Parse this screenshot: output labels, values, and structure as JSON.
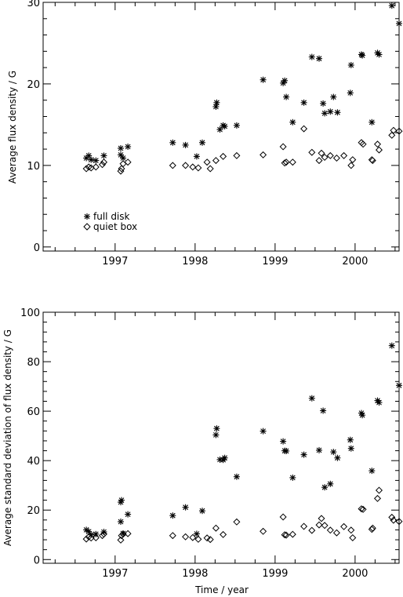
{
  "chart_data": [
    {
      "type": "scatter",
      "title": "",
      "xlabel": "",
      "ylabel": "Average flux density / G",
      "xlim": [
        1996.1,
        2000.55
      ],
      "ylim": [
        -0.5,
        30
      ],
      "xticks": [
        1997,
        1998,
        1999,
        2000
      ],
      "xtick_labels": [
        "1997",
        "1998",
        "1999",
        "2000"
      ],
      "yticks": [
        0,
        10,
        20,
        30
      ],
      "ytick_labels": [
        "0",
        "10",
        "20",
        "30"
      ],
      "legend": {
        "placement": "lower-left",
        "entries": [
          {
            "label": "full disk",
            "marker": "asterisk"
          },
          {
            "label": "quiet box",
            "marker": "diamond"
          }
        ]
      },
      "series": [
        {
          "name": "full disk",
          "marker": "asterisk",
          "x": [
            1996.64,
            1996.67,
            1996.7,
            1996.76,
            1996.86,
            1997.07,
            1997.07,
            1997.1,
            1997.16,
            1997.72,
            1997.88,
            1998.02,
            1998.09,
            1998.26,
            1998.27,
            1998.31,
            1998.35,
            1998.37,
            1998.52,
            1998.85,
            1999.1,
            1999.12,
            1999.14,
            1999.22,
            1999.36,
            1999.46,
            1999.55,
            1999.6,
            1999.62,
            1999.69,
            1999.73,
            1999.78,
            1999.94,
            1999.95,
            2000.08,
            2000.09,
            2000.21,
            2000.28,
            2000.3,
            2000.46,
            2000.55
          ],
          "y": [
            10.9,
            11.2,
            10.7,
            10.6,
            11.2,
            12.1,
            11.3,
            10.9,
            12.3,
            12.8,
            12.5,
            11.1,
            12.8,
            17.2,
            17.7,
            14.4,
            14.9,
            14.8,
            14.9,
            20.5,
            20.1,
            20.4,
            18.4,
            15.3,
            17.7,
            23.3,
            23.1,
            17.6,
            16.4,
            16.6,
            18.4,
            16.5,
            18.9,
            22.3,
            23.6,
            23.5,
            15.3,
            23.8,
            23.6,
            29.6,
            27.4
          ]
        },
        {
          "name": "quiet box",
          "marker": "diamond",
          "x": [
            1996.64,
            1996.67,
            1996.7,
            1996.76,
            1996.84,
            1996.86,
            1997.07,
            1997.08,
            1997.1,
            1997.16,
            1997.72,
            1997.88,
            1997.97,
            1998.04,
            1998.15,
            1998.19,
            1998.26,
            1998.35,
            1998.52,
            1998.85,
            1999.1,
            1999.12,
            1999.14,
            1999.22,
            1999.36,
            1999.46,
            1999.55,
            1999.58,
            1999.62,
            1999.69,
            1999.77,
            1999.86,
            1999.95,
            1999.97,
            2000.08,
            2000.1,
            2000.21,
            2000.22,
            2000.28,
            2000.3,
            2000.46,
            2000.48,
            2000.55
          ],
          "y": [
            9.6,
            9.8,
            9.7,
            9.8,
            10.1,
            10.4,
            9.3,
            9.6,
            10.2,
            10.4,
            10.0,
            10.0,
            9.8,
            9.7,
            10.4,
            9.6,
            10.6,
            11.1,
            11.2,
            11.3,
            12.3,
            10.3,
            10.4,
            10.4,
            14.5,
            11.6,
            10.6,
            11.5,
            11.0,
            11.2,
            10.9,
            11.2,
            10.0,
            10.7,
            12.8,
            12.6,
            10.7,
            10.6,
            12.6,
            11.9,
            13.7,
            14.3,
            14.2
          ]
        }
      ]
    },
    {
      "type": "scatter",
      "title": "",
      "xlabel": "Time / year",
      "ylabel": "Average standard deviation of flux density / G",
      "xlim": [
        1996.1,
        2000.55
      ],
      "ylim": [
        -1.5,
        100
      ],
      "xticks": [
        1997,
        1998,
        1999,
        2000
      ],
      "xtick_labels": [
        "1997",
        "1998",
        "1999",
        "2000"
      ],
      "yticks": [
        0,
        20,
        40,
        60,
        80,
        100
      ],
      "ytick_labels": [
        "0",
        "20",
        "40",
        "60",
        "80",
        "100"
      ],
      "series": [
        {
          "name": "full disk",
          "marker": "asterisk",
          "x": [
            1996.64,
            1996.67,
            1996.7,
            1996.76,
            1996.86,
            1997.07,
            1997.07,
            1997.08,
            1997.1,
            1997.16,
            1997.72,
            1997.88,
            1998.02,
            1998.09,
            1998.26,
            1998.27,
            1998.31,
            1998.35,
            1998.37,
            1998.52,
            1998.85,
            1999.1,
            1999.12,
            1999.14,
            1999.22,
            1999.36,
            1999.46,
            1999.55,
            1999.6,
            1999.62,
            1999.69,
            1999.73,
            1999.78,
            1999.94,
            1999.95,
            2000.08,
            2000.09,
            2000.21,
            2000.28,
            2000.3,
            2000.46,
            2000.55
          ],
          "y": [
            12.0,
            11.3,
            10.0,
            10.3,
            11.2,
            23.2,
            15.3,
            24.0,
            10.6,
            18.3,
            17.8,
            21.1,
            10.4,
            19.7,
            50.4,
            53.0,
            40.4,
            40.3,
            41.1,
            33.5,
            51.9,
            47.8,
            44.0,
            43.9,
            33.1,
            42.4,
            65.2,
            44.2,
            60.2,
            29.2,
            30.6,
            43.5,
            41.1,
            48.4,
            44.9,
            59.2,
            58.4,
            35.9,
            64.3,
            63.5,
            86.5,
            70.4
          ]
        },
        {
          "name": "quiet box",
          "marker": "diamond",
          "x": [
            1996.64,
            1996.67,
            1996.7,
            1996.76,
            1996.84,
            1996.86,
            1997.07,
            1997.08,
            1997.1,
            1997.16,
            1997.72,
            1997.88,
            1997.97,
            1998.04,
            1998.15,
            1998.19,
            1998.26,
            1998.35,
            1998.52,
            1998.85,
            1999.1,
            1999.12,
            1999.14,
            1999.22,
            1999.36,
            1999.46,
            1999.55,
            1999.58,
            1999.62,
            1999.69,
            1999.77,
            1999.86,
            1999.95,
            1999.97,
            2000.08,
            2000.1,
            2000.21,
            2000.22,
            2000.28,
            2000.3,
            2000.46,
            2000.48,
            2000.55
          ],
          "y": [
            8.3,
            9.2,
            8.7,
            8.8,
            9.7,
            10.3,
            7.9,
            9.7,
            10.3,
            10.5,
            9.7,
            9.2,
            8.9,
            8.2,
            8.7,
            8.1,
            12.7,
            10.1,
            15.2,
            11.4,
            17.2,
            10.0,
            9.9,
            10.2,
            13.4,
            11.8,
            14.0,
            16.6,
            13.8,
            11.9,
            10.8,
            13.3,
            11.9,
            8.8,
            20.5,
            20.3,
            12.2,
            12.7,
            24.7,
            28.0,
            17.1,
            15.9,
            15.4
          ]
        }
      ]
    }
  ]
}
